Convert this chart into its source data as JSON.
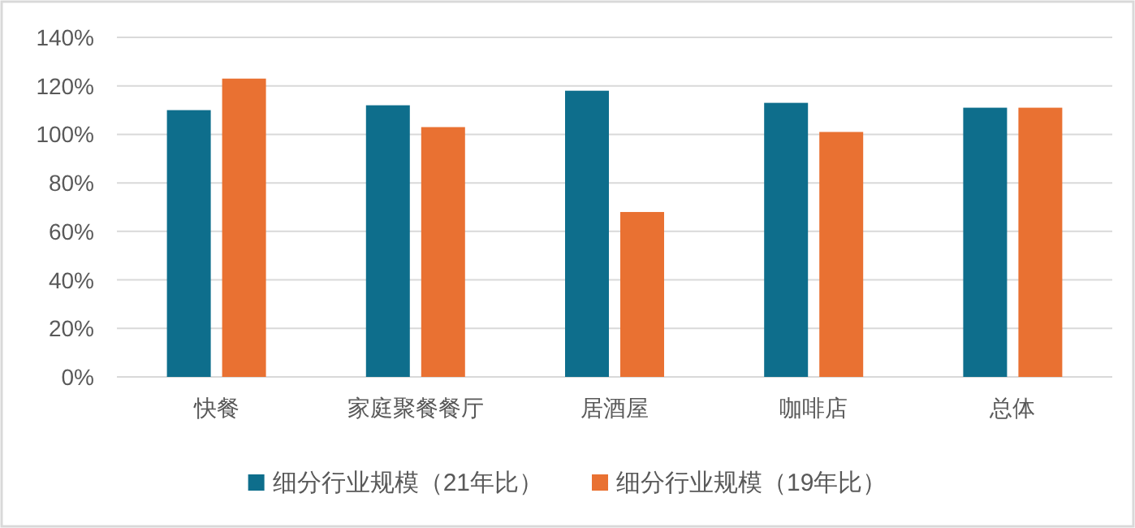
{
  "chart_data": {
    "type": "bar",
    "categories": [
      "快餐",
      "家庭聚餐餐厅",
      "居酒屋",
      "咖啡店",
      "总体"
    ],
    "series": [
      {
        "name": "细分行业规模（21年比）",
        "color": "#0e6e8c",
        "values": [
          110,
          112,
          118,
          113,
          111
        ]
      },
      {
        "name": "细分行业规模（19年比）",
        "color": "#e97132",
        "values": [
          123,
          103,
          68,
          101,
          111
        ]
      }
    ],
    "ylim": [
      0,
      140
    ],
    "yticks": [
      {
        "value": 0,
        "label": "0%"
      },
      {
        "value": 20,
        "label": "20%"
      },
      {
        "value": 40,
        "label": "40%"
      },
      {
        "value": 60,
        "label": "60%"
      },
      {
        "value": 80,
        "label": "80%"
      },
      {
        "value": 100,
        "label": "100%"
      },
      {
        "value": 120,
        "label": "120%"
      },
      {
        "value": 140,
        "label": "140%"
      }
    ],
    "grid": "y",
    "legend": "bottom"
  }
}
